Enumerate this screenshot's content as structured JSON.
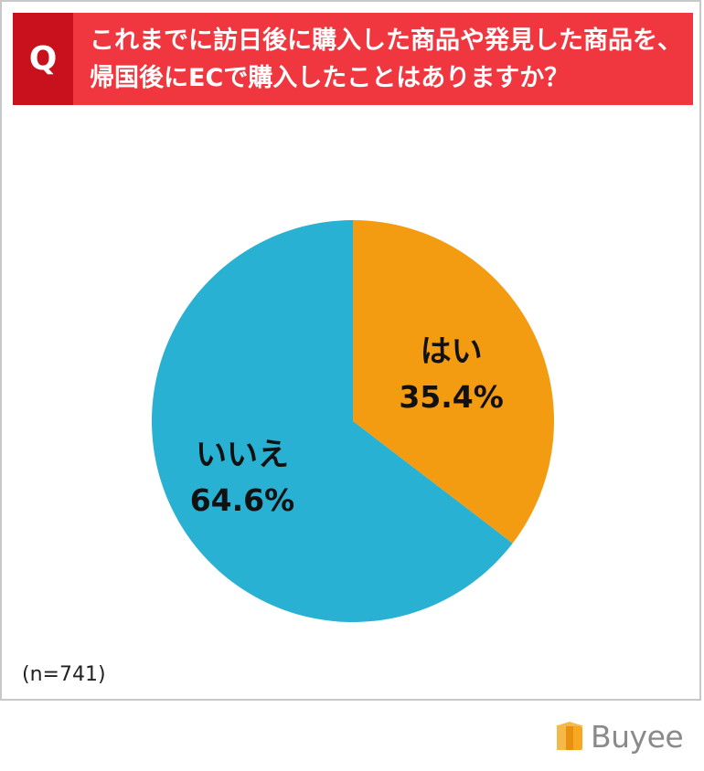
{
  "question": {
    "badge": "Q",
    "line1": "これまでに訪日後に購入した商品や発見した商品を、",
    "line2": "帰国後にECで購入したことはありますか？"
  },
  "chart_data": {
    "type": "pie",
    "slices": [
      {
        "label": "はい",
        "value": 35.4,
        "display": "35.4%",
        "color": "#f39c12"
      },
      {
        "label": "いいえ",
        "value": 64.6,
        "display": "64.6%",
        "color": "#29b1d3"
      }
    ],
    "start_angle_deg": 0,
    "direction": "clockwise"
  },
  "footnote": "(n=741)",
  "brand": {
    "name": "Buyee",
    "icon": "box-logo-icon",
    "accent": "#f7a823"
  }
}
